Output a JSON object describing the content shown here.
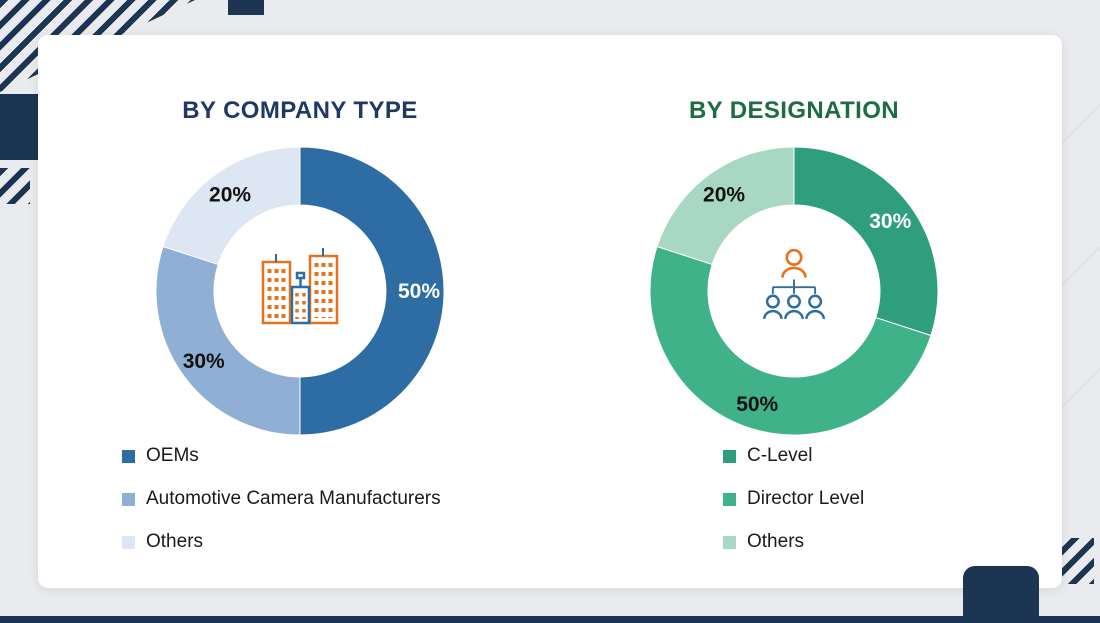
{
  "theme": {
    "background": "#eaebee",
    "card_background": "#ffffff",
    "navy_accent": "#1c3552",
    "bottom_bar": "#1c3552",
    "icon_orange": "#e8721c",
    "icon_blue": "#2e6da4"
  },
  "chart_data": [
    {
      "type": "pie",
      "subtype": "donut",
      "title": "BY COMPANY TYPE",
      "title_color": "#1f3864",
      "center_icon": "buildings-icon",
      "direction": "clockwise",
      "start_angle": 0,
      "unit": "%",
      "categories": [
        "OEMs",
        "Automotive Camera Manufacturers",
        "Others"
      ],
      "values": [
        50,
        30,
        20
      ],
      "legend_position": "bottom-left",
      "segments": [
        {
          "name": "OEMs",
          "value": 50,
          "display": "50%",
          "color": "#2e6da4",
          "text_color": "#ffffff"
        },
        {
          "name": "Automotive Camera Manufacturers",
          "value": 30,
          "display": "30%",
          "color": "#8fafd4",
          "text_color": "#111111"
        },
        {
          "name": "Others",
          "value": 20,
          "display": "20%",
          "color": "#dde6f3",
          "text_color": "#111111"
        }
      ]
    },
    {
      "type": "pie",
      "subtype": "donut",
      "title": "BY DESIGNATION",
      "title_color": "#1e6c42",
      "center_icon": "org-chart-icon",
      "direction": "clockwise",
      "start_angle": 0,
      "unit": "%",
      "categories": [
        "C-Level",
        "Director Level",
        "Others"
      ],
      "values": [
        30,
        50,
        20
      ],
      "legend_position": "bottom-left",
      "segments": [
        {
          "name": "C-Level",
          "value": 30,
          "display": "30%",
          "color": "#2f9e7d",
          "text_color": "#ffffff"
        },
        {
          "name": "Director Level",
          "value": 50,
          "display": "50%",
          "color": "#3fb28a",
          "text_color": "#111111"
        },
        {
          "name": "Others",
          "value": 20,
          "display": "20%",
          "color": "#a8d7c3",
          "text_color": "#111111"
        }
      ]
    }
  ]
}
